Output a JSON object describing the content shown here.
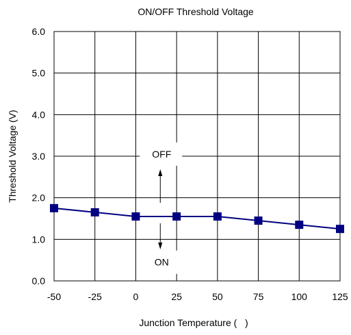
{
  "chart_data": {
    "type": "line",
    "title": "ON/OFF Threshold Voltage",
    "xlabel": "Junction Temperature (   )",
    "ylabel": "Threshold Voltage (V)",
    "x": [
      -50,
      -25,
      0,
      25,
      50,
      75,
      100,
      125
    ],
    "x_tick_labels": [
      "-50",
      "-25",
      "0",
      "25",
      "50",
      "75",
      "100",
      "125"
    ],
    "y_tick_labels": [
      "0.0",
      "1.0",
      "2.0",
      "3.0",
      "4.0",
      "5.0",
      "6.0"
    ],
    "y_ticks": [
      0,
      1,
      2,
      3,
      4,
      5,
      6
    ],
    "xlim": [
      -50,
      125
    ],
    "ylim": [
      0,
      6
    ],
    "grid": true,
    "series": [
      {
        "values": [
          1.75,
          1.65,
          1.55,
          1.55,
          1.55,
          1.45,
          1.35,
          1.25
        ],
        "color": "#000080"
      }
    ],
    "annotations": [
      {
        "text": "OFF",
        "x": 15,
        "y": 3.05
      },
      {
        "text": "ON",
        "x": 15,
        "y": 0.45
      }
    ]
  }
}
